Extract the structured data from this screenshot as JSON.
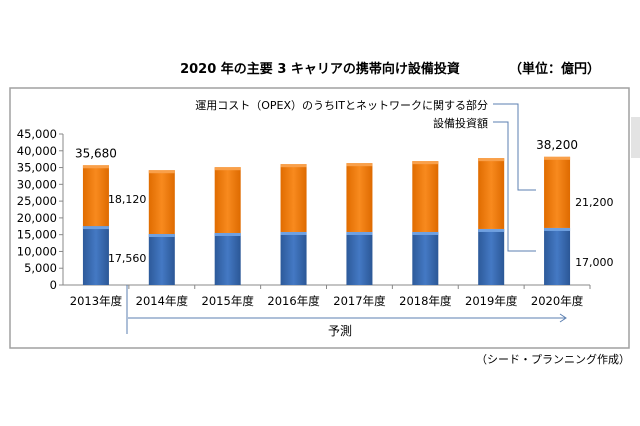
{
  "chart_data": {
    "type": "bar",
    "stacked": true,
    "title": "2020 年の主要 3 キャリアの携帯向け設備投資",
    "unit_label": "（単位：億円）",
    "categories": [
      "2013年度",
      "2014年度",
      "2015年度",
      "2016年度",
      "2017年度",
      "2018年度",
      "2019年度",
      "2020年度"
    ],
    "series": [
      {
        "name": "設備投資額",
        "color": "#3a6cb3",
        "values": [
          17560,
          15200,
          15500,
          15800,
          15800,
          15800,
          16700,
          17000
        ]
      },
      {
        "name": "運用コスト（OPEX）のうちITとネットワークに関する部分",
        "color": "#f07d10",
        "values": [
          18120,
          19000,
          19600,
          20200,
          20500,
          21100,
          21100,
          21200
        ]
      }
    ],
    "totals_labels": {
      "first": "35,680",
      "last": "38,200"
    },
    "segment_labels": {
      "first_blue": "17,560",
      "first_orange": "18,120",
      "last_blue": "17,000",
      "last_orange": "21,200"
    },
    "ylim": [
      0,
      45000
    ],
    "yticks": [
      "0",
      "5,000",
      "10,000",
      "15,000",
      "20,000",
      "25,000",
      "30,000",
      "35,000",
      "40,000",
      "45,000"
    ],
    "grid": false,
    "legend_placement": "top-right",
    "forecast_label": "予測",
    "source": "（シード・プランニング作成）"
  }
}
